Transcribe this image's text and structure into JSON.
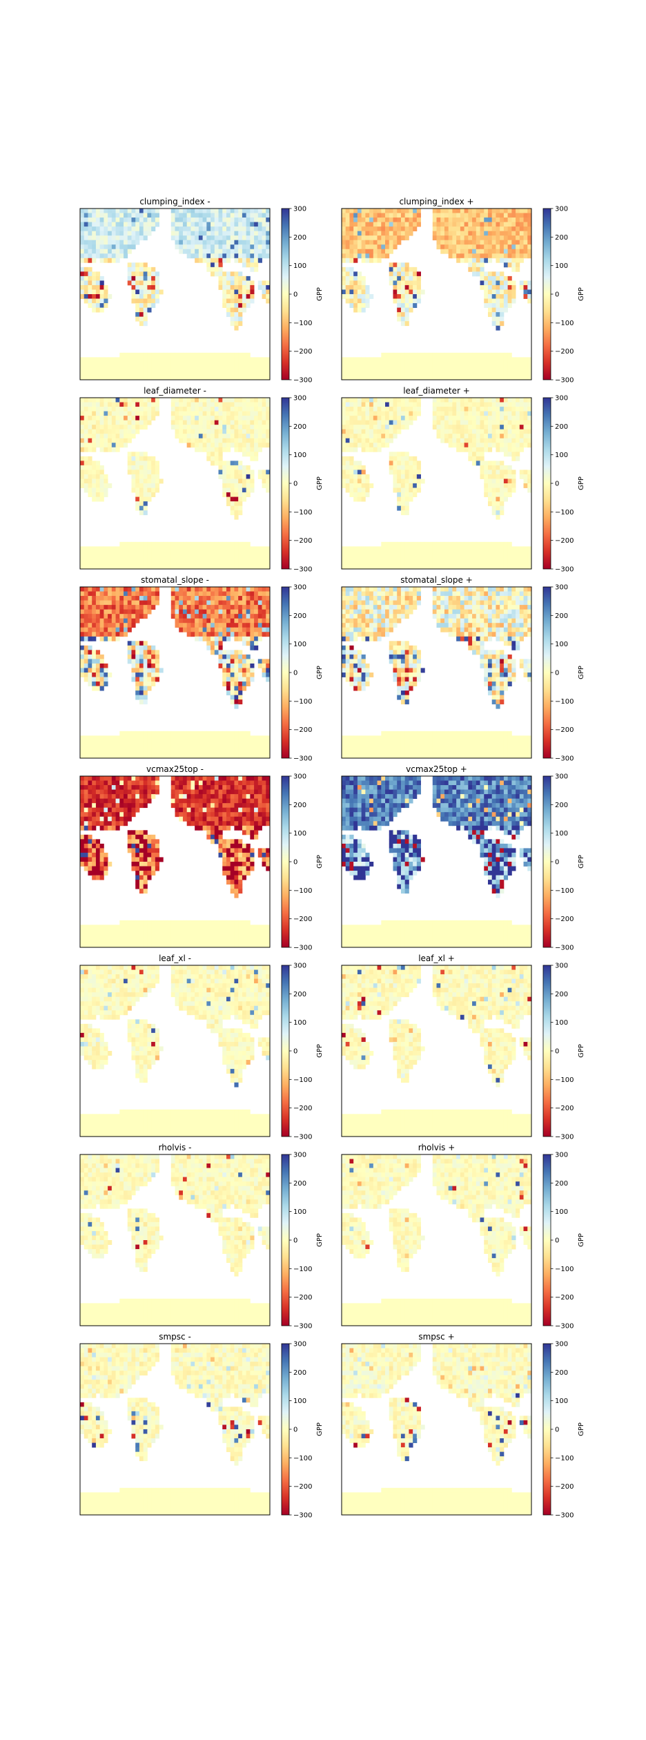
{
  "chart_data": {
    "type": "heatmap",
    "layout": {
      "rows": 7,
      "cols": 2
    },
    "colorbar": {
      "label": "GPP",
      "range": [
        -300,
        300
      ],
      "ticks": [
        -300,
        -200,
        -100,
        0,
        100,
        200,
        300
      ],
      "tick_labels": [
        "−300",
        "−200",
        "−100",
        "0",
        "100",
        "200",
        "300"
      ],
      "colormap": "RdYlBu",
      "colors": [
        "#a50026",
        "#d73027",
        "#f46d43",
        "#fdae61",
        "#fee090",
        "#ffffbf",
        "#e0f3f8",
        "#abd9e9",
        "#74add1",
        "#4575b4",
        "#313695"
      ]
    },
    "panels": [
      {
        "title": "clumping_index -",
        "pattern": "mixed_pos_north"
      },
      {
        "title": "clumping_index +",
        "pattern": "mixed_neg_north"
      },
      {
        "title": "leaf_diameter -",
        "pattern": "faint"
      },
      {
        "title": "leaf_diameter +",
        "pattern": "faint"
      },
      {
        "title": "stomatal_slope -",
        "pattern": "strong_neg_north"
      },
      {
        "title": "stomatal_slope +",
        "pattern": "mixed_moderate"
      },
      {
        "title": "vcmax25top -",
        "pattern": "very_strong_neg"
      },
      {
        "title": "vcmax25top +",
        "pattern": "very_strong_pos"
      },
      {
        "title": "leaf_xl -",
        "pattern": "faint"
      },
      {
        "title": "leaf_xl +",
        "pattern": "faint"
      },
      {
        "title": "rholvis -",
        "pattern": "faint"
      },
      {
        "title": "rholvis +",
        "pattern": "faint"
      },
      {
        "title": "smpsc -",
        "pattern": "faint_mixed"
      },
      {
        "title": "smpsc +",
        "pattern": "faint_mixed"
      }
    ]
  }
}
